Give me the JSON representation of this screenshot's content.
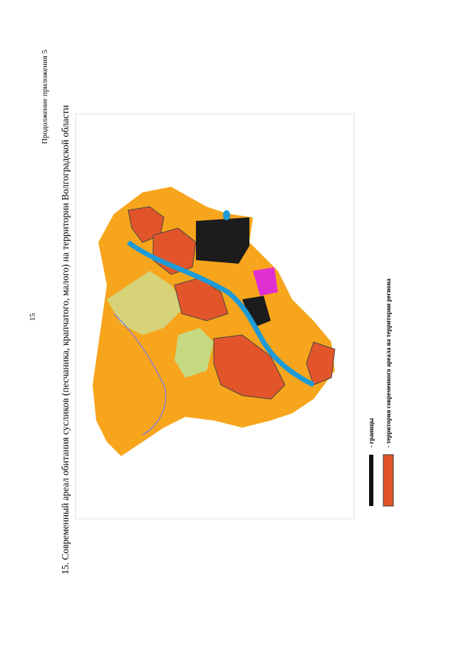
{
  "header": {
    "page_number": "15",
    "continuation": "Продолжение приложения 5"
  },
  "figure": {
    "caption": "15. Современный ареал обитания сусликов (песчаника, крапчатого, малого) на территории Волгоградской области",
    "legend": [
      {
        "label": "- границы"
      },
      {
        "label": "- территория современного ареала на территории региона"
      }
    ]
  }
}
